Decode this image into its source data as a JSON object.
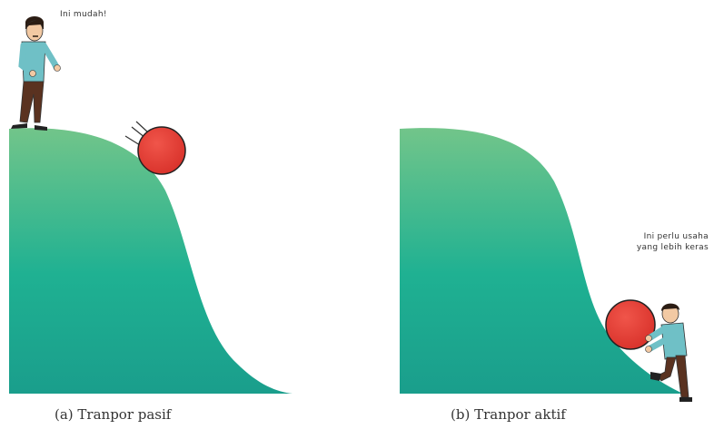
{
  "panel_a": {
    "speech": "Ini mudah!",
    "caption": "(a) Tranpor pasif"
  },
  "panel_b": {
    "speech_line1": "Ini perlu usaha",
    "speech_line2": "yang lebih keras",
    "caption": "(b) Tranpor aktif"
  },
  "colors": {
    "hill_top": "#72c58a",
    "hill_bottom": "#1a9e8c",
    "ball": "#e03b2f",
    "shirt": "#6fc0c6",
    "pants": "#5a3220"
  }
}
